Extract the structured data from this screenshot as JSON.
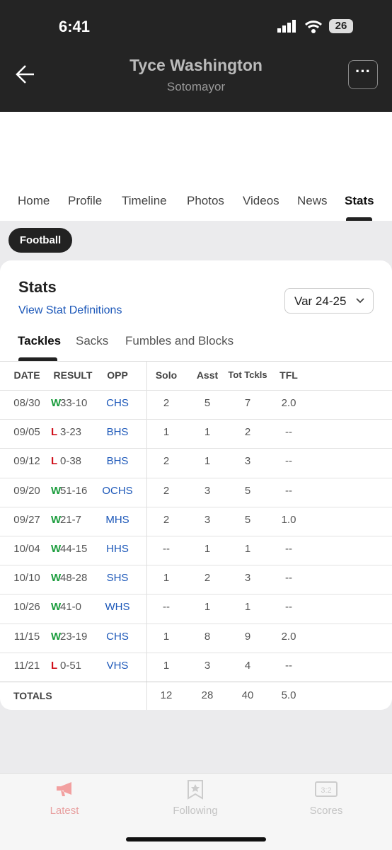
{
  "status_bar": {
    "time": "6:41",
    "battery": "26"
  },
  "header": {
    "title": "Tyce Washington",
    "subtitle": "Sotomayor"
  },
  "tabs": [
    "Home",
    "Profile",
    "Timeline",
    "Photos",
    "Videos",
    "News",
    "Stats"
  ],
  "sport_chip": "Football",
  "card": {
    "title": "Stats",
    "link": "View Stat Definitions",
    "season": "Var 24-25",
    "subtabs": [
      "Tackles",
      "Sacks",
      "Fumbles and Blocks"
    ]
  },
  "table": {
    "columns": [
      "DATE",
      "RESULT",
      "OPP",
      "Solo",
      "Asst",
      "Tot Tckls",
      "TFL"
    ],
    "rows": [
      [
        "08/30",
        "W",
        "33-10",
        "CHS",
        "2",
        "5",
        "7",
        "2.0"
      ],
      [
        "09/05",
        "L",
        "3-23",
        "BHS",
        "1",
        "1",
        "2",
        "--"
      ],
      [
        "09/12",
        "L",
        "0-38",
        "BHS",
        "2",
        "1",
        "3",
        "--"
      ],
      [
        "09/20",
        "W",
        "51-16",
        "OCHS",
        "2",
        "3",
        "5",
        "--"
      ],
      [
        "09/27",
        "W",
        "21-7",
        "MHS",
        "2",
        "3",
        "5",
        "1.0"
      ],
      [
        "10/04",
        "W",
        "44-15",
        "HHS",
        "--",
        "1",
        "1",
        "--"
      ],
      [
        "10/10",
        "W",
        "48-28",
        "SHS",
        "1",
        "2",
        "3",
        "--"
      ],
      [
        "10/26",
        "W",
        "41-0",
        "WHS",
        "--",
        "1",
        "1",
        "--"
      ],
      [
        "11/15",
        "W",
        "23-19",
        "CHS",
        "1",
        "8",
        "9",
        "2.0"
      ],
      [
        "11/21",
        "L",
        "0-51",
        "VHS",
        "1",
        "3",
        "4",
        "--"
      ]
    ],
    "totals": {
      "label": "TOTALS",
      "values": [
        "12",
        "28",
        "40",
        "5.0"
      ]
    }
  },
  "bottom_nav": [
    "Latest",
    "Following",
    "Scores"
  ]
}
